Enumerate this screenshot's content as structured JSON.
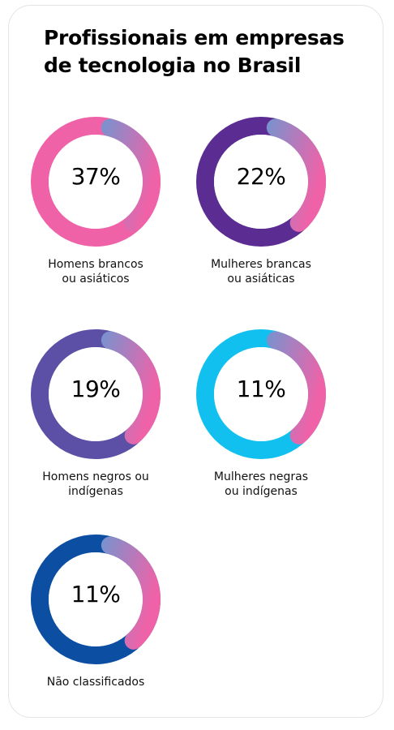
{
  "title": {
    "line1": "Profissionais em empresas",
    "line2": "de tecnologia no Brasil"
  },
  "chart_data": {
    "type": "donut",
    "title": "Profissionais em empresas de tecnologia no Brasil",
    "unit": "%",
    "items": [
      {
        "label_line1": "Homens brancos",
        "label_line2": "ou asiáticos",
        "value": 37,
        "display": "37%",
        "color": "#f062a8"
      },
      {
        "label_line1": "Mulheres brancas",
        "label_line2": "ou asiáticas",
        "value": 22,
        "display": "22%",
        "color": "#5b2d93"
      },
      {
        "label_line1": "Homens negros ou",
        "label_line2": "indígenas",
        "value": 19,
        "display": "19%",
        "color": "#5b4fa6"
      },
      {
        "label_line1": "Mulheres negras",
        "label_line2": "ou indígenas",
        "value": 11,
        "display": "11%",
        "color": "#12c0ef"
      },
      {
        "label_line1": "Não classificados",
        "label_line2": "",
        "value": 11,
        "display": "11%",
        "color": "#0b4ea2"
      }
    ],
    "highlight_colors": [
      "#22b5ea",
      "#f062a8"
    ]
  }
}
